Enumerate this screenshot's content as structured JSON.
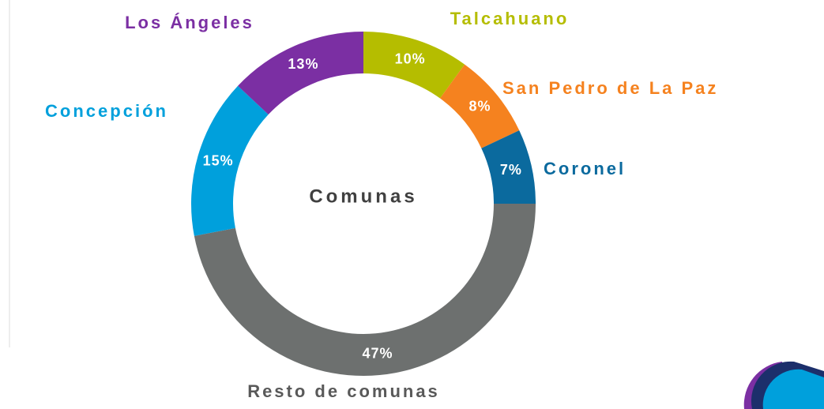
{
  "chart_data": {
    "type": "donut",
    "center_label": "Comunas",
    "categories": [
      "Talcahuano",
      "San Pedro de La Paz",
      "Coronel",
      "Resto de comunas",
      "Concepción",
      "Los Ángeles"
    ],
    "values": [
      10,
      8,
      7,
      47,
      15,
      13
    ],
    "value_labels": [
      "10%",
      "8%",
      "7%",
      "47%",
      "15%",
      "13%"
    ],
    "colors": [
      "#b5bd00",
      "#f5821f",
      "#0b6a9e",
      "#6d706f",
      "#00a0dc",
      "#7b2fa3"
    ]
  }
}
